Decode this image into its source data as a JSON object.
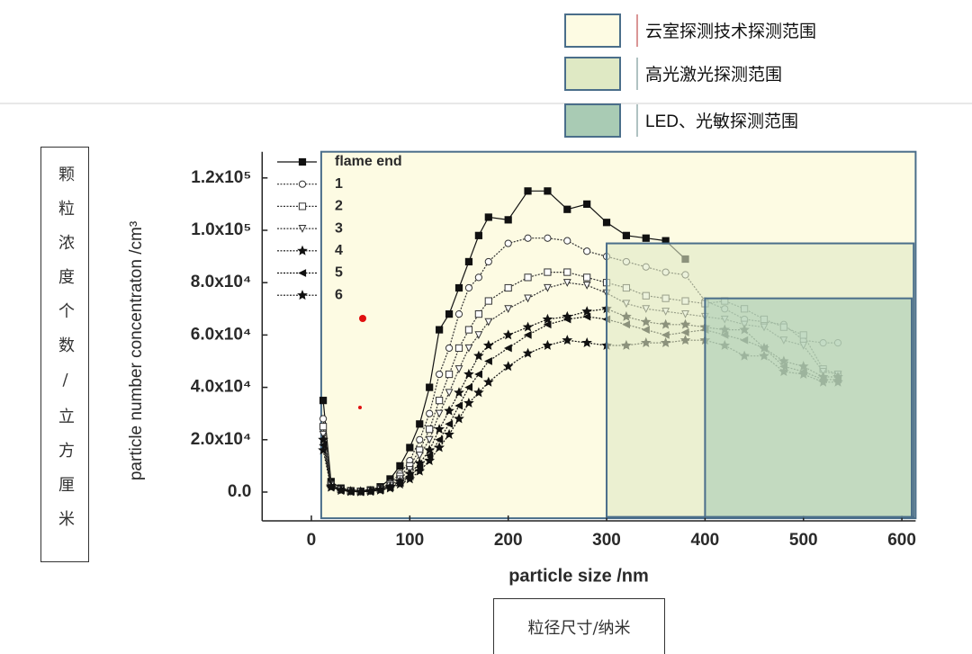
{
  "chart_data": {
    "type": "line",
    "x_label": "particle size /nm",
    "y_label": "particle number concentraton /cm³",
    "x_label_cn": "粒径尺寸/纳米",
    "y_label_cn": "颗粒浓度个数/立方厘米",
    "xlim": [
      -50,
      614
    ],
    "ylim": [
      -11000,
      130000
    ],
    "xticks": [
      0,
      100,
      200,
      300,
      400,
      500,
      600
    ],
    "yticks": [
      {
        "value": 0,
        "label": "0.0"
      },
      {
        "value": 20000,
        "label": "2.0x10⁴"
      },
      {
        "value": 40000,
        "label": "4.0x10⁴"
      },
      {
        "value": 60000,
        "label": "6.0x10⁴"
      },
      {
        "value": 80000,
        "label": "8.0x10⁴"
      },
      {
        "value": 100000,
        "label": "1.0x10⁵"
      },
      {
        "value": 120000,
        "label": "1.2x10⁵"
      }
    ],
    "x": [
      12,
      20,
      30,
      40,
      50,
      60,
      70,
      80,
      90,
      100,
      110,
      120,
      130,
      140,
      150,
      160,
      170,
      180,
      200,
      220,
      240,
      260,
      280,
      300,
      320,
      340,
      360,
      380,
      400,
      420,
      440,
      460,
      480,
      500,
      520,
      535
    ],
    "series": [
      {
        "name": "flame end",
        "color": "#111111",
        "marker": "square",
        "values": [
          35000,
          4000,
          1500,
          500,
          300,
          800,
          2000,
          5000,
          10000,
          17000,
          26000,
          40000,
          62000,
          68000,
          78000,
          88000,
          98000,
          105000,
          104000,
          115000,
          115000,
          108000,
          110000,
          103000,
          98000,
          97000,
          96000,
          89000,
          null,
          null,
          null,
          null,
          null,
          null,
          null,
          null
        ]
      },
      {
        "name": "1",
        "color": "#333333",
        "marker": "circle",
        "values": [
          28000,
          3000,
          1200,
          400,
          200,
          600,
          1500,
          3500,
          7000,
          12000,
          20000,
          30000,
          45000,
          55000,
          68000,
          78000,
          82000,
          88000,
          95000,
          97000,
          97000,
          96000,
          92000,
          90000,
          88000,
          86000,
          84000,
          83000,
          73000,
          70000,
          66000,
          65000,
          64000,
          58000,
          57000,
          57000
        ]
      },
      {
        "name": "2",
        "color": "#333333",
        "marker": "open-square",
        "values": [
          25000,
          2800,
          1000,
          300,
          200,
          500,
          1200,
          3000,
          6000,
          10000,
          16000,
          24000,
          35000,
          45000,
          55000,
          62000,
          68000,
          73000,
          78000,
          82000,
          84000,
          84000,
          82000,
          80000,
          78000,
          75000,
          74000,
          73000,
          72000,
          73000,
          70000,
          66000,
          63000,
          60000,
          47000,
          45000
        ]
      },
      {
        "name": "3",
        "color": "#333333",
        "marker": "triangle-down",
        "values": [
          22000,
          2500,
          900,
          300,
          150,
          400,
          1000,
          2500,
          5000,
          8500,
          14000,
          20000,
          30000,
          38000,
          47000,
          55000,
          60000,
          65000,
          70000,
          74000,
          78000,
          80000,
          79000,
          76000,
          72000,
          70000,
          69000,
          68000,
          67000,
          66000,
          64000,
          63000,
          58000,
          56000,
          46000,
          45000
        ]
      },
      {
        "name": "4",
        "color": "#111111",
        "marker": "star",
        "values": [
          20000,
          2200,
          800,
          250,
          120,
          350,
          900,
          2000,
          4000,
          7000,
          11000,
          16000,
          24000,
          31000,
          38000,
          45000,
          52000,
          56000,
          60000,
          63000,
          66000,
          67000,
          69000,
          70000,
          67000,
          65000,
          64000,
          64000,
          63000,
          62000,
          62000,
          55000,
          50000,
          48000,
          44000,
          44000
        ]
      },
      {
        "name": "5",
        "color": "#111111",
        "marker": "triangle-left",
        "values": [
          18000,
          2000,
          700,
          200,
          100,
          300,
          800,
          1800,
          3500,
          6000,
          9500,
          14000,
          20000,
          26000,
          33000,
          40000,
          45000,
          50000,
          55000,
          60000,
          64000,
          66000,
          67000,
          66000,
          64000,
          62000,
          60000,
          61000,
          62000,
          60000,
          58000,
          55000,
          48000,
          46000,
          43000,
          43000
        ]
      },
      {
        "name": "6",
        "color": "#111111",
        "marker": "star",
        "values": [
          16000,
          1800,
          600,
          200,
          100,
          250,
          700,
          1500,
          3000,
          5000,
          8000,
          12000,
          17000,
          22000,
          28000,
          34000,
          38000,
          42000,
          48000,
          53000,
          56000,
          58000,
          57000,
          56000,
          56000,
          57000,
          57000,
          58000,
          58000,
          56000,
          52000,
          52000,
          46000,
          45000,
          42000,
          42000
        ]
      }
    ],
    "regions": [
      {
        "name": "云室探测技术探测范围",
        "color": "#fdfbe3",
        "xlim": [
          10,
          614
        ],
        "ylim": [
          -10000,
          130000
        ]
      },
      {
        "name": "高光激光探测范围",
        "color": "#dfe9c4",
        "xlim": [
          300,
          612
        ],
        "ylim": [
          -9500,
          95000
        ]
      },
      {
        "name": "LED、光敏探测范围",
        "color": "#a9cbb4",
        "xlim": [
          400,
          610
        ],
        "ylim": [
          -9500,
          74000
        ]
      }
    ]
  }
}
